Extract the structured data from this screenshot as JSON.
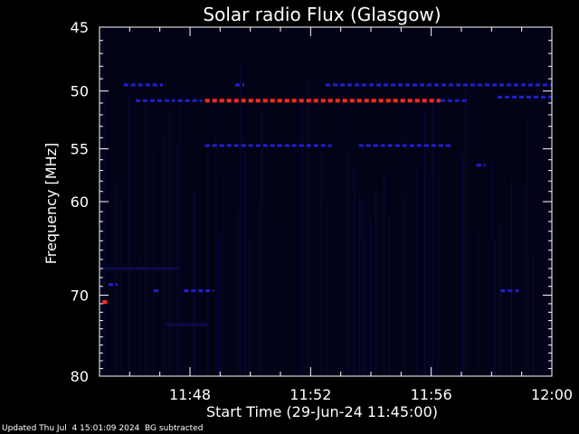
{
  "footer": {
    "updated": "Updated Thu Jul  4 15:01:09 2024",
    "note": "BG subtracted"
  },
  "chart_data": {
    "type": "heatmap",
    "title": "Solar radio Flux (Glasgow)",
    "xlabel": "Start Time (29-Jun-24 11:45:00)",
    "ylabel": "Frequency [MHz]",
    "x_ticks": [
      {
        "label": "11:48",
        "minutes": 3
      },
      {
        "label": "11:52",
        "minutes": 7
      },
      {
        "label": "11:56",
        "minutes": 11
      },
      {
        "label": "12:00",
        "minutes": 15
      }
    ],
    "xlim_minutes": [
      0,
      15
    ],
    "y_ticks": [
      45,
      50,
      55,
      60,
      70,
      80
    ],
    "ylim": [
      45,
      80
    ],
    "y_scale": "log",
    "colors": {
      "background": "#000000",
      "plot_background": "#030318",
      "faint": "#0c0c50",
      "medium": "#1f1fd0",
      "strong": "#ff2a1a",
      "axis": "#ffffff"
    },
    "emission_bands": [
      {
        "freq": 49.5,
        "start": 0.8,
        "end": 2.1,
        "level": "medium"
      },
      {
        "freq": 49.5,
        "start": 4.5,
        "end": 4.8,
        "level": "medium"
      },
      {
        "freq": 49.5,
        "start": 7.5,
        "end": 15.0,
        "level": "medium"
      },
      {
        "freq": 50.8,
        "start": 1.2,
        "end": 2.5,
        "level": "medium"
      },
      {
        "freq": 50.8,
        "start": 2.6,
        "end": 3.4,
        "level": "medium"
      },
      {
        "freq": 50.8,
        "start": 3.5,
        "end": 11.3,
        "level": "strong"
      },
      {
        "freq": 50.8,
        "start": 11.3,
        "end": 12.2,
        "level": "medium"
      },
      {
        "freq": 50.5,
        "start": 13.2,
        "end": 15.0,
        "level": "medium"
      },
      {
        "freq": 54.7,
        "start": 3.5,
        "end": 7.7,
        "level": "medium"
      },
      {
        "freq": 54.7,
        "start": 8.6,
        "end": 11.7,
        "level": "medium"
      },
      {
        "freq": 56.5,
        "start": 12.5,
        "end": 12.8,
        "level": "medium"
      },
      {
        "freq": 69.5,
        "start": 1.8,
        "end": 2.0,
        "level": "medium"
      },
      {
        "freq": 69.5,
        "start": 2.8,
        "end": 3.8,
        "level": "medium"
      },
      {
        "freq": 69.5,
        "start": 13.3,
        "end": 13.9,
        "level": "medium"
      },
      {
        "freq": 68.8,
        "start": 0.3,
        "end": 0.6,
        "level": "medium"
      },
      {
        "freq": 73.5,
        "start": 2.2,
        "end": 3.6,
        "level": "faint"
      },
      {
        "freq": 70.8,
        "start": 0.1,
        "end": 0.3,
        "level": "strong"
      },
      {
        "freq": 67.0,
        "start": 0.1,
        "end": 2.6,
        "level": "faint"
      }
    ]
  }
}
